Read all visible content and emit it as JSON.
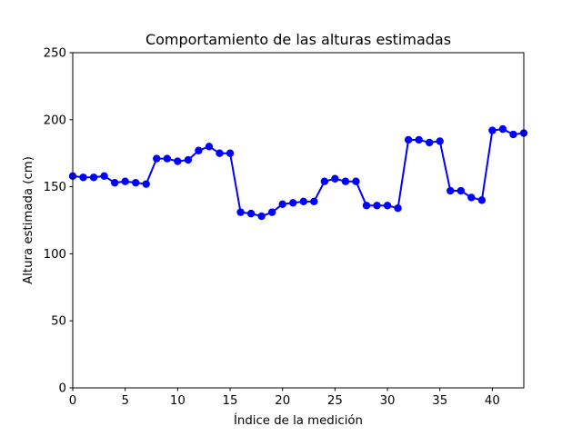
{
  "chart_data": {
    "type": "line",
    "title": "Comportamiento de las alturas estimadas",
    "xlabel": "Índice de la medición",
    "ylabel": "Altura estimada (cm)",
    "xlim": [
      0,
      43
    ],
    "ylim": [
      0,
      250
    ],
    "xticks": [
      0,
      5,
      10,
      15,
      20,
      25,
      30,
      35,
      40
    ],
    "yticks": [
      0,
      50,
      100,
      150,
      200,
      250
    ],
    "grid": false,
    "series": [
      {
        "color": "#0000ff",
        "marker": "circle",
        "x": [
          0,
          1,
          2,
          3,
          4,
          5,
          6,
          7,
          8,
          9,
          10,
          11,
          12,
          13,
          14,
          15,
          16,
          17,
          18,
          19,
          20,
          21,
          22,
          23,
          24,
          25,
          26,
          27,
          28,
          29,
          30,
          31,
          32,
          33,
          34,
          35,
          36,
          37,
          38,
          39,
          40,
          41,
          42,
          43
        ],
        "y": [
          158,
          157,
          157,
          158,
          153,
          154,
          153,
          152,
          171,
          171,
          169,
          170,
          177,
          180,
          175,
          175,
          131,
          130,
          128,
          131,
          137,
          138,
          139,
          139,
          154,
          156,
          154,
          154,
          136,
          136,
          136,
          134,
          185,
          185,
          183,
          184,
          147,
          147,
          142,
          140,
          192,
          193,
          189,
          190
        ]
      }
    ]
  }
}
